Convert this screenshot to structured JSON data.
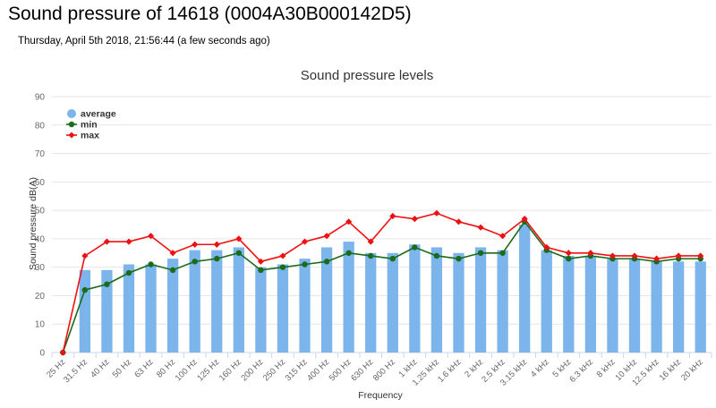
{
  "page": {
    "title": "Sound pressure of 14618 (0004A30B000142D5)",
    "timestamp": "Thursday, April 5th 2018, 21:56:44 (a few seconds ago)"
  },
  "colors": {
    "average": "#7cb5ec",
    "min": "#1a6b1a",
    "max": "#ee1111",
    "grid": "#e6e6e6"
  },
  "chart_data": {
    "type": "bar",
    "title": "Sound pressure levels",
    "xlabel": "Frequency",
    "ylabel": "Sound pressure dB(A)",
    "ylim": [
      0,
      90
    ],
    "yticks": [
      0,
      10,
      20,
      30,
      40,
      50,
      60,
      70,
      80,
      90
    ],
    "grid": true,
    "legend": "top-left",
    "categories": [
      "25 Hz",
      "31.5 Hz",
      "40 Hz",
      "50 Hz",
      "63 Hz",
      "80 Hz",
      "100 Hz",
      "125 Hz",
      "160 Hz",
      "200 Hz",
      "250 Hz",
      "315 Hz",
      "400 Hz",
      "500 Hz",
      "630 Hz",
      "800 Hz",
      "1 kHz",
      "1.25 kHz",
      "1.6 kHz",
      "2 kHz",
      "2.5 kHz",
      "3.15 kHz",
      "4 kHz",
      "5 kHz",
      "6.3 kHz",
      "8 kHz",
      "10 kHz",
      "12.5 kHz",
      "16 kHz",
      "20 kHz"
    ],
    "series": [
      {
        "name": "average",
        "type": "bar",
        "values": [
          0,
          29,
          29,
          31,
          31,
          33,
          36,
          36,
          37,
          30,
          31,
          33,
          37,
          39,
          35,
          35,
          38,
          37,
          35,
          37,
          36,
          45,
          36,
          34,
          34,
          33,
          33,
          32,
          32,
          32
        ]
      },
      {
        "name": "min",
        "type": "line",
        "values": [
          0,
          22,
          24,
          28,
          31,
          29,
          32,
          33,
          35,
          29,
          30,
          31,
          32,
          35,
          34,
          33,
          37,
          34,
          33,
          35,
          35,
          46,
          36,
          33,
          34,
          33,
          33,
          32,
          33,
          33
        ]
      },
      {
        "name": "max",
        "type": "line",
        "values": [
          0,
          34,
          39,
          39,
          41,
          35,
          38,
          38,
          40,
          32,
          34,
          39,
          41,
          46,
          39,
          48,
          47,
          49,
          46,
          44,
          41,
          47,
          37,
          35,
          35,
          34,
          34,
          33,
          34,
          34
        ]
      }
    ]
  }
}
